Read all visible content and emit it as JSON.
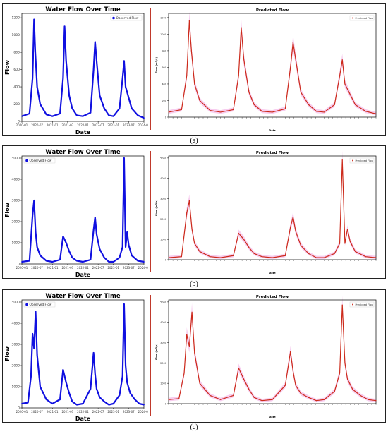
{
  "panel_labels": [
    "(a)",
    "(b)",
    "(c)"
  ],
  "colors": {
    "observed": "#1010e0",
    "predicted": "#cc2a1a",
    "band": "#f4b8e8",
    "divider": "#c0392b"
  },
  "chart_data": [
    {
      "panel": "(a)",
      "side": "observed",
      "type": "line",
      "title": "Water Flow Over Time",
      "xlabel": "Date",
      "ylabel": "Flow",
      "legend": "Observed Flow",
      "legend_position": "top-right",
      "xlim": [
        2020.0,
        2024.0
      ],
      "xticks": [
        "2020-01",
        "2020-07",
        "2021-01",
        "2021-07",
        "2022-01",
        "2022-07",
        "2023-01",
        "2023-07",
        "2024-01"
      ],
      "ylim": [
        0,
        1250
      ],
      "yticks": [
        0,
        200,
        400,
        600,
        800,
        1000,
        1200
      ],
      "x": [
        2020.0,
        2020.25,
        2020.35,
        2020.4,
        2020.44,
        2020.5,
        2020.6,
        2020.8,
        2021.0,
        2021.25,
        2021.35,
        2021.4,
        2021.45,
        2021.55,
        2021.65,
        2021.8,
        2022.0,
        2022.25,
        2022.35,
        2022.4,
        2022.45,
        2022.55,
        2022.7,
        2022.85,
        2023.0,
        2023.2,
        2023.3,
        2023.35,
        2023.4,
        2023.48,
        2023.6,
        2023.8,
        2024.0
      ],
      "y": [
        60,
        90,
        500,
        1180,
        800,
        400,
        200,
        80,
        60,
        90,
        500,
        1100,
        700,
        300,
        150,
        70,
        60,
        100,
        600,
        920,
        700,
        300,
        150,
        70,
        60,
        150,
        500,
        700,
        400,
        300,
        150,
        70,
        40
      ]
    },
    {
      "panel": "(a)",
      "side": "predicted",
      "type": "line",
      "title": "Predicted Flow",
      "xlabel": "Date",
      "ylabel": "Flow (m3/s)",
      "legend": "Predicted Flow",
      "legend_position": "top-right",
      "xlim": [
        2020.0,
        2024.0
      ],
      "ylim": [
        0,
        1250
      ],
      "yticks": [
        0,
        200,
        400,
        600,
        800,
        1000,
        1200
      ],
      "x": [
        2020.0,
        2020.25,
        2020.35,
        2020.4,
        2020.44,
        2020.5,
        2020.6,
        2020.8,
        2021.0,
        2021.25,
        2021.35,
        2021.4,
        2021.45,
        2021.55,
        2021.65,
        2021.8,
        2022.0,
        2022.25,
        2022.35,
        2022.4,
        2022.45,
        2022.55,
        2022.7,
        2022.85,
        2023.0,
        2023.2,
        2023.3,
        2023.35,
        2023.4,
        2023.48,
        2023.6,
        2023.8,
        2024.0
      ],
      "y": [
        60,
        90,
        500,
        1160,
        800,
        400,
        200,
        80,
        60,
        90,
        500,
        1080,
        700,
        300,
        150,
        70,
        60,
        100,
        600,
        900,
        700,
        300,
        150,
        70,
        60,
        150,
        500,
        690,
        400,
        300,
        150,
        70,
        40
      ]
    },
    {
      "panel": "(b)",
      "side": "observed",
      "type": "line",
      "title": "Water Flow Over Time",
      "xlabel": "Date",
      "ylabel": "Flow",
      "legend": "Observed Flow",
      "legend_position": "top-left",
      "xlim": [
        2020.0,
        2024.0
      ],
      "xticks": [
        "2020-01",
        "2020-07",
        "2021-01",
        "2021-07",
        "2022-01",
        "2022-07",
        "2023-01",
        "2023-07",
        "2024-01"
      ],
      "ylim": [
        0,
        5100
      ],
      "yticks": [
        0,
        1000,
        2000,
        3000,
        4000,
        5000
      ],
      "x": [
        2020.0,
        2020.25,
        2020.35,
        2020.4,
        2020.45,
        2020.5,
        2020.6,
        2020.8,
        2021.0,
        2021.25,
        2021.35,
        2021.45,
        2021.55,
        2021.65,
        2021.8,
        2022.0,
        2022.25,
        2022.35,
        2022.4,
        2022.45,
        2022.55,
        2022.7,
        2022.85,
        2023.0,
        2023.2,
        2023.3,
        2023.35,
        2023.4,
        2023.45,
        2023.5,
        2023.6,
        2023.8,
        2024.0
      ],
      "y": [
        100,
        150,
        2300,
        3000,
        1500,
        800,
        400,
        150,
        100,
        200,
        1300,
        1000,
        600,
        300,
        150,
        100,
        200,
        1600,
        2200,
        1400,
        700,
        300,
        100,
        100,
        300,
        800,
        5000,
        800,
        1500,
        900,
        400,
        150,
        100
      ]
    },
    {
      "panel": "(b)",
      "side": "predicted",
      "type": "line",
      "title": "Predicted Flow",
      "xlabel": "Date",
      "ylabel": "Flow (m3/s)",
      "legend": "Predicted Flow",
      "legend_position": "top-right",
      "xlim": [
        2020.0,
        2024.0
      ],
      "ylim": [
        0,
        5100
      ],
      "yticks": [
        0,
        1000,
        2000,
        3000,
        4000,
        5000
      ],
      "x": [
        2020.0,
        2020.25,
        2020.35,
        2020.4,
        2020.45,
        2020.5,
        2020.6,
        2020.8,
        2021.0,
        2021.25,
        2021.35,
        2021.45,
        2021.55,
        2021.65,
        2021.8,
        2022.0,
        2022.25,
        2022.35,
        2022.4,
        2022.45,
        2022.55,
        2022.7,
        2022.85,
        2023.0,
        2023.2,
        2023.3,
        2023.35,
        2023.4,
        2023.45,
        2023.5,
        2023.6,
        2023.8,
        2024.0
      ],
      "y": [
        100,
        150,
        2300,
        2900,
        1500,
        800,
        400,
        150,
        100,
        200,
        1300,
        1000,
        600,
        300,
        150,
        100,
        200,
        1600,
        2100,
        1400,
        700,
        300,
        100,
        100,
        300,
        800,
        4900,
        800,
        1500,
        900,
        400,
        150,
        100
      ]
    },
    {
      "panel": "(c)",
      "side": "observed",
      "type": "line",
      "title": "Water Flow Over Time",
      "xlabel": "Date",
      "ylabel": "Flow",
      "legend": "Observed Flow",
      "legend_position": "top-left",
      "xlim": [
        2020.0,
        2024.0
      ],
      "xticks": [
        "2020-01",
        "2020-07",
        "2021-01",
        "2021-07",
        "2022-01",
        "2022-07",
        "2023-01",
        "2023-07",
        "2024-01"
      ],
      "ylim": [
        0,
        5100
      ],
      "yticks": [
        0,
        1000,
        2000,
        3000,
        4000,
        5000
      ],
      "x": [
        2020.0,
        2020.2,
        2020.3,
        2020.35,
        2020.4,
        2020.45,
        2020.5,
        2020.6,
        2020.8,
        2021.0,
        2021.25,
        2021.35,
        2021.45,
        2021.55,
        2021.65,
        2021.8,
        2022.0,
        2022.25,
        2022.35,
        2022.4,
        2022.45,
        2022.55,
        2022.7,
        2022.85,
        2023.0,
        2023.2,
        2023.3,
        2023.35,
        2023.4,
        2023.45,
        2023.55,
        2023.7,
        2023.85,
        2024.0
      ],
      "y": [
        200,
        250,
        1500,
        3500,
        2800,
        4550,
        2500,
        1000,
        400,
        200,
        400,
        1800,
        1200,
        700,
        300,
        150,
        200,
        900,
        2600,
        1600,
        900,
        500,
        300,
        150,
        200,
        600,
        1500,
        4900,
        2000,
        1200,
        700,
        400,
        200,
        150
      ]
    },
    {
      "panel": "(c)",
      "side": "predicted",
      "type": "line",
      "title": "Predicted Flow",
      "xlabel": "Date",
      "ylabel": "Flow (m3/s)",
      "legend": "Predicted Flow",
      "legend_position": "top-right",
      "xlim": [
        2020.0,
        2024.0
      ],
      "ylim": [
        0,
        5100
      ],
      "yticks": [
        0,
        1000,
        2000,
        3000,
        4000,
        5000
      ],
      "x": [
        2020.0,
        2020.2,
        2020.3,
        2020.35,
        2020.4,
        2020.45,
        2020.5,
        2020.6,
        2020.8,
        2021.0,
        2021.25,
        2021.35,
        2021.45,
        2021.55,
        2021.65,
        2021.8,
        2022.0,
        2022.25,
        2022.35,
        2022.4,
        2022.45,
        2022.55,
        2022.7,
        2022.85,
        2023.0,
        2023.2,
        2023.3,
        2023.35,
        2023.4,
        2023.45,
        2023.55,
        2023.7,
        2023.85,
        2024.0
      ],
      "y": [
        200,
        250,
        1500,
        3400,
        2800,
        4500,
        2500,
        1000,
        400,
        200,
        400,
        1750,
        1200,
        700,
        300,
        150,
        200,
        900,
        2550,
        1600,
        900,
        500,
        300,
        150,
        200,
        600,
        1500,
        4850,
        2000,
        1200,
        700,
        400,
        200,
        150
      ]
    }
  ]
}
